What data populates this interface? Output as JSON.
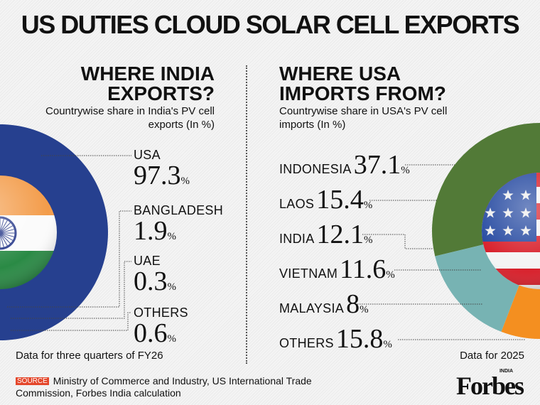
{
  "title": "US DUTIES CLOUD SOLAR CELL EXPORTS",
  "chart_data": [
    {
      "type": "pie",
      "title": "WHERE INDIA EXPORTS?",
      "subtitle": "Countrywise share in India's PV cell exports (In %)",
      "note": "Data for three quarters of FY26",
      "categories": [
        "USA",
        "BANGLADESH",
        "UAE",
        "OTHERS"
      ],
      "values": [
        97.3,
        1.9,
        0.3,
        0.6
      ],
      "colors": [
        "#26408f",
        "#7b2d80",
        "#c48bc0",
        "#8fd2cf"
      ],
      "unit": "%",
      "center_flag": "india-flag"
    },
    {
      "type": "pie",
      "title": "WHERE USA IMPORTS FROM?",
      "subtitle": "Countrywise share in USA's PV cell imports (In %)",
      "note": "Data for 2025",
      "categories": [
        "INDONESIA",
        "LAOS",
        "INDIA",
        "VIETNAM",
        "MALAYSIA",
        "OTHERS"
      ],
      "values": [
        37.1,
        15.4,
        12.1,
        11.6,
        8,
        15.8
      ],
      "colors": [
        "#527a37",
        "#77b3b3",
        "#f48f20",
        "#45b38c",
        "#a97bb7",
        "#712f7c"
      ],
      "unit": "%",
      "center_flag": "usa-flag"
    }
  ],
  "source_label": "SOURCE",
  "source_text": "Ministry of Commerce and Industry, US International Trade Commission, Forbes India calculation",
  "logo": {
    "name": "Forbes",
    "edition": "INDIA"
  }
}
